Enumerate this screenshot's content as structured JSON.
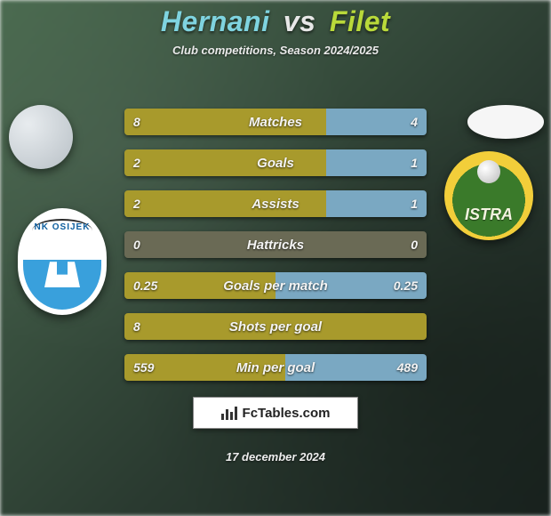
{
  "title": {
    "player1": "Hernani",
    "vs": "vs",
    "player2": "Filet"
  },
  "subtitle": "Club competitions, Season 2024/2025",
  "colors": {
    "left_bar": "#a89a2c",
    "right_bar": "#7aa8c2",
    "full_bar": "#a89a2c",
    "empty_track": "#6a6a55"
  },
  "club_left_label": "NK OSIJEK",
  "club_right_label": "ISTRA",
  "stats": [
    {
      "label": "Matches",
      "left_val": "8",
      "right_val": "4",
      "left_pct": 66.7,
      "right_pct": 33.3,
      "show_right": true
    },
    {
      "label": "Goals",
      "left_val": "2",
      "right_val": "1",
      "left_pct": 66.7,
      "right_pct": 33.3,
      "show_right": true
    },
    {
      "label": "Assists",
      "left_val": "2",
      "right_val": "1",
      "left_pct": 66.7,
      "right_pct": 33.3,
      "show_right": true
    },
    {
      "label": "Hattricks",
      "left_val": "0",
      "right_val": "0",
      "left_pct": 50.0,
      "right_pct": 50.0,
      "show_right": true,
      "empty": true
    },
    {
      "label": "Goals per match",
      "left_val": "0.25",
      "right_val": "0.25",
      "left_pct": 50.0,
      "right_pct": 50.0,
      "show_right": true
    },
    {
      "label": "Shots per goal",
      "left_val": "8",
      "right_val": "",
      "left_pct": 100.0,
      "right_pct": 0.0,
      "show_right": false
    },
    {
      "label": "Min per goal",
      "left_val": "559",
      "right_val": "489",
      "left_pct": 53.3,
      "right_pct": 46.7,
      "show_right": true
    }
  ],
  "footer_brand": "FcTables.com",
  "date": "17 december 2024"
}
